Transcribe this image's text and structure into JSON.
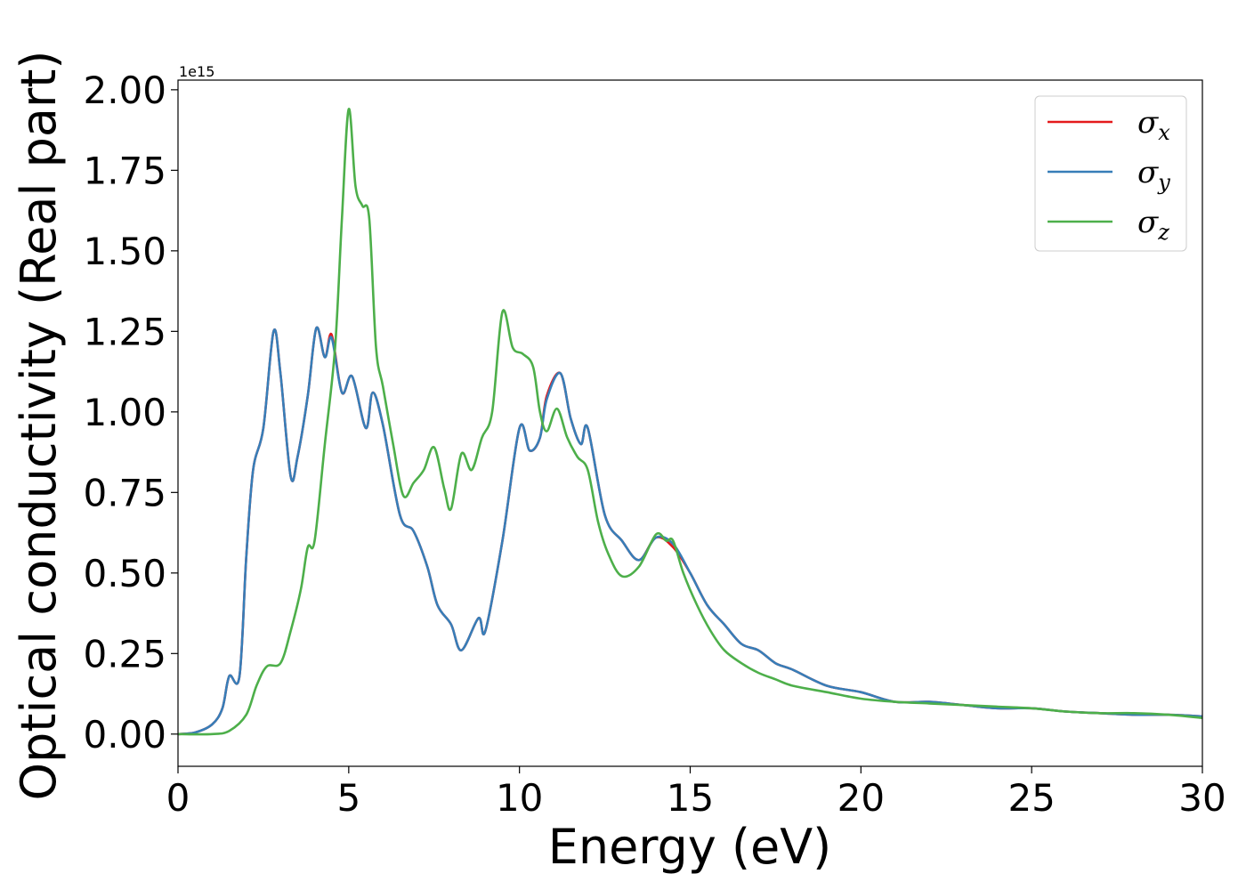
{
  "chart_data": {
    "type": "line",
    "xlabel": "Energy (eV)",
    "ylabel": "Optical conductivity (Real part)",
    "y_offset_text": "1e15",
    "xlim": [
      0,
      30
    ],
    "ylim": [
      -0.1,
      2.03
    ],
    "xticks": [
      0,
      5,
      10,
      15,
      20,
      25,
      30
    ],
    "xtick_labels": [
      "0",
      "5",
      "10",
      "15",
      "20",
      "25",
      "30"
    ],
    "yticks": [
      0.0,
      0.25,
      0.5,
      0.75,
      1.0,
      1.25,
      1.5,
      1.75,
      2.0
    ],
    "ytick_labels": [
      "0.00",
      "0.25",
      "0.50",
      "0.75",
      "1.00",
      "1.25",
      "1.50",
      "1.75",
      "2.00"
    ],
    "grid": false,
    "legend_position": "top-right",
    "series": [
      {
        "name": "σ",
        "subscript": "x",
        "color": "#e41a1c",
        "x": [
          0,
          0.5,
          1.0,
          1.3,
          1.5,
          1.8,
          2.0,
          2.2,
          2.5,
          2.8,
          3.0,
          3.3,
          3.5,
          3.8,
          4.05,
          4.3,
          4.5,
          4.8,
          5.1,
          5.5,
          5.7,
          6.0,
          6.5,
          6.9,
          7.3,
          7.6,
          8.0,
          8.3,
          8.8,
          9.0,
          9.5,
          10.0,
          10.3,
          10.6,
          10.8,
          11.2,
          11.5,
          11.8,
          12.0,
          12.5,
          13.0,
          13.5,
          14.0,
          14.5,
          15.0,
          15.5,
          16.0,
          16.5,
          17.0,
          17.5,
          18.0,
          19.0,
          20.0,
          21.0,
          22.0,
          23.0,
          24.0,
          25.0,
          26.0,
          27.0,
          28.0,
          29.0,
          30.0
        ],
        "values": [
          0.0,
          0.005,
          0.03,
          0.08,
          0.18,
          0.18,
          0.55,
          0.82,
          0.95,
          1.25,
          1.12,
          0.8,
          0.86,
          1.05,
          1.26,
          1.17,
          1.24,
          1.06,
          1.11,
          0.95,
          1.06,
          0.96,
          0.68,
          0.63,
          0.52,
          0.4,
          0.34,
          0.26,
          0.36,
          0.32,
          0.6,
          0.95,
          0.88,
          0.92,
          1.05,
          1.12,
          0.98,
          0.9,
          0.95,
          0.68,
          0.6,
          0.54,
          0.61,
          0.58,
          0.5,
          0.4,
          0.34,
          0.28,
          0.26,
          0.22,
          0.2,
          0.15,
          0.13,
          0.1,
          0.1,
          0.09,
          0.08,
          0.08,
          0.07,
          0.065,
          0.06,
          0.06,
          0.055
        ]
      },
      {
        "name": "σ",
        "subscript": "y",
        "color": "#377eb8",
        "x": [
          0,
          0.5,
          1.0,
          1.3,
          1.5,
          1.8,
          2.0,
          2.2,
          2.5,
          2.8,
          3.0,
          3.3,
          3.5,
          3.8,
          4.05,
          4.3,
          4.5,
          4.8,
          5.1,
          5.5,
          5.7,
          6.0,
          6.5,
          6.9,
          7.3,
          7.6,
          8.0,
          8.3,
          8.8,
          9.0,
          9.5,
          10.0,
          10.3,
          10.6,
          10.8,
          11.2,
          11.5,
          11.8,
          12.0,
          12.5,
          13.0,
          13.5,
          14.0,
          14.5,
          15.0,
          15.5,
          16.0,
          16.5,
          17.0,
          17.5,
          18.0,
          19.0,
          20.0,
          21.0,
          22.0,
          23.0,
          24.0,
          25.0,
          26.0,
          27.0,
          28.0,
          29.0,
          30.0
        ],
        "values": [
          0.0,
          0.005,
          0.03,
          0.08,
          0.18,
          0.18,
          0.55,
          0.82,
          0.95,
          1.25,
          1.12,
          0.8,
          0.86,
          1.05,
          1.26,
          1.17,
          1.23,
          1.06,
          1.11,
          0.95,
          1.06,
          0.96,
          0.68,
          0.63,
          0.52,
          0.4,
          0.34,
          0.26,
          0.36,
          0.32,
          0.6,
          0.95,
          0.88,
          0.92,
          1.04,
          1.12,
          0.98,
          0.9,
          0.95,
          0.68,
          0.6,
          0.54,
          0.61,
          0.59,
          0.5,
          0.4,
          0.34,
          0.28,
          0.26,
          0.22,
          0.2,
          0.15,
          0.13,
          0.1,
          0.1,
          0.09,
          0.08,
          0.08,
          0.07,
          0.065,
          0.06,
          0.06,
          0.055
        ]
      },
      {
        "name": "σ",
        "subscript": "z",
        "color": "#4daf4a",
        "x": [
          0,
          1.0,
          1.5,
          2.0,
          2.3,
          2.6,
          3.0,
          3.3,
          3.6,
          3.8,
          4.0,
          4.3,
          4.6,
          4.8,
          5.0,
          5.2,
          5.4,
          5.6,
          5.8,
          6.0,
          6.3,
          6.6,
          6.9,
          7.2,
          7.5,
          7.8,
          8.0,
          8.3,
          8.6,
          8.9,
          9.2,
          9.5,
          9.8,
          10.1,
          10.4,
          10.6,
          10.8,
          11.1,
          11.4,
          11.7,
          12.0,
          12.3,
          12.6,
          13.0,
          13.5,
          14.0,
          14.3,
          14.5,
          14.8,
          15.2,
          15.6,
          16.0,
          16.5,
          17.0,
          17.5,
          18.0,
          19.0,
          20.0,
          21.0,
          22.0,
          23.0,
          24.0,
          25.0,
          26.0,
          27.0,
          28.0,
          29.0,
          30.0
        ],
        "values": [
          0.0,
          0.0,
          0.01,
          0.06,
          0.15,
          0.21,
          0.22,
          0.32,
          0.45,
          0.58,
          0.6,
          0.9,
          1.2,
          1.6,
          1.94,
          1.7,
          1.64,
          1.6,
          1.2,
          1.08,
          0.9,
          0.74,
          0.78,
          0.82,
          0.89,
          0.76,
          0.7,
          0.87,
          0.82,
          0.92,
          1.0,
          1.31,
          1.2,
          1.18,
          1.14,
          1.0,
          0.94,
          1.01,
          0.92,
          0.86,
          0.82,
          0.66,
          0.56,
          0.49,
          0.52,
          0.62,
          0.6,
          0.6,
          0.5,
          0.4,
          0.32,
          0.26,
          0.22,
          0.19,
          0.17,
          0.15,
          0.13,
          0.11,
          0.1,
          0.095,
          0.09,
          0.085,
          0.08,
          0.07,
          0.065,
          0.065,
          0.06,
          0.05
        ]
      }
    ]
  }
}
